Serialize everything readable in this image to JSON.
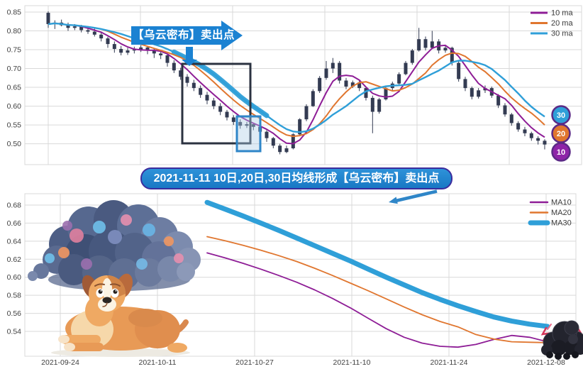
{
  "top_callout": {
    "label": "【乌云密布】卖出点"
  },
  "mid_banner": {
    "label": "2021-11-11 10日,20日,30日均线形成【乌云密布】卖出点"
  },
  "colors": {
    "ma10": "#8e1d96",
    "ma20": "#e0762f",
    "ma30": "#2f9fd8",
    "candle": "#333b52",
    "grid": "#d9d9d9",
    "axis_text": "#3f3f3f",
    "banner_fill": "#1b82d2",
    "box_dark": "#2b3240",
    "box_blue": "#2f86c8",
    "badge_border": "#5b2a86",
    "badge10": "#8e24a8",
    "badge20": "#e0762f",
    "badge30": "#2f9fd8"
  },
  "badges": [
    {
      "label": "30",
      "color_key": "badge30"
    },
    {
      "label": "20",
      "color_key": "badge20"
    },
    {
      "label": "10",
      "color_key": "badge10"
    }
  ],
  "chart_data": [
    {
      "type": "candlestick",
      "title": "",
      "legend": [
        "10 ma",
        "20 ma",
        "30 ma"
      ],
      "ylim": [
        0.47,
        0.87
      ],
      "yticks": [
        0.85,
        0.8,
        0.75,
        0.7,
        0.65,
        0.6,
        0.55,
        0.5
      ],
      "ma_render_windows": [
        5,
        9,
        12
      ],
      "highlight_ma30_segment": [
        19,
        33
      ],
      "candles": [
        [
          0.848,
          0.852,
          0.808,
          0.818
        ],
        [
          0.818,
          0.828,
          0.805,
          0.822
        ],
        [
          0.822,
          0.83,
          0.812,
          0.815
        ],
        [
          0.815,
          0.822,
          0.8,
          0.808
        ],
        [
          0.808,
          0.818,
          0.802,
          0.812
        ],
        [
          0.812,
          0.816,
          0.796,
          0.802
        ],
        [
          0.802,
          0.81,
          0.792,
          0.798
        ],
        [
          0.798,
          0.806,
          0.785,
          0.79
        ],
        [
          0.79,
          0.796,
          0.772,
          0.78
        ],
        [
          0.78,
          0.784,
          0.755,
          0.765
        ],
        [
          0.765,
          0.772,
          0.742,
          0.752
        ],
        [
          0.752,
          0.76,
          0.735,
          0.742
        ],
        [
          0.742,
          0.755,
          0.736,
          0.748
        ],
        [
          0.748,
          0.758,
          0.74,
          0.75
        ],
        [
          0.75,
          0.762,
          0.744,
          0.756
        ],
        [
          0.756,
          0.76,
          0.738,
          0.748
        ],
        [
          0.748,
          0.752,
          0.728,
          0.74
        ],
        [
          0.74,
          0.748,
          0.725,
          0.735
        ],
        [
          0.735,
          0.74,
          0.705,
          0.715
        ],
        [
          0.715,
          0.722,
          0.688,
          0.695
        ],
        [
          0.695,
          0.702,
          0.67,
          0.678
        ],
        [
          0.678,
          0.685,
          0.652,
          0.662
        ],
        [
          0.662,
          0.67,
          0.64,
          0.648
        ],
        [
          0.648,
          0.655,
          0.622,
          0.63
        ],
        [
          0.63,
          0.638,
          0.605,
          0.615
        ],
        [
          0.615,
          0.622,
          0.592,
          0.6
        ],
        [
          0.6,
          0.608,
          0.576,
          0.585
        ],
        [
          0.585,
          0.59,
          0.562,
          0.57
        ],
        [
          0.57,
          0.576,
          0.55,
          0.558
        ],
        [
          0.558,
          0.565,
          0.54,
          0.548
        ],
        [
          0.548,
          0.558,
          0.542,
          0.552
        ],
        [
          0.552,
          0.556,
          0.536,
          0.545
        ],
        [
          0.545,
          0.55,
          0.522,
          0.532
        ],
        [
          0.532,
          0.536,
          0.505,
          0.515
        ],
        [
          0.515,
          0.518,
          0.488,
          0.495
        ],
        [
          0.495,
          0.5,
          0.472,
          0.478
        ],
        [
          0.478,
          0.495,
          0.475,
          0.488
        ],
        [
          0.488,
          0.528,
          0.485,
          0.525
        ],
        [
          0.525,
          0.568,
          0.522,
          0.565
        ],
        [
          0.565,
          0.605,
          0.56,
          0.6
        ],
        [
          0.6,
          0.645,
          0.598,
          0.64
        ],
        [
          0.64,
          0.68,
          0.635,
          0.675
        ],
        [
          0.675,
          0.72,
          0.67,
          0.7
        ],
        [
          0.7,
          0.728,
          0.688,
          0.715
        ],
        [
          0.715,
          0.72,
          0.66,
          0.668
        ],
        [
          0.668,
          0.675,
          0.645,
          0.652
        ],
        [
          0.652,
          0.668,
          0.648,
          0.663
        ],
        [
          0.663,
          0.67,
          0.64,
          0.648
        ],
        [
          0.648,
          0.652,
          0.615,
          0.622
        ],
        [
          0.622,
          0.628,
          0.528,
          0.585
        ],
        [
          0.585,
          0.622,
          0.58,
          0.618
        ],
        [
          0.618,
          0.652,
          0.615,
          0.648
        ],
        [
          0.648,
          0.665,
          0.642,
          0.66
        ],
        [
          0.66,
          0.69,
          0.655,
          0.685
        ],
        [
          0.685,
          0.72,
          0.682,
          0.715
        ],
        [
          0.715,
          0.752,
          0.71,
          0.748
        ],
        [
          0.748,
          0.808,
          0.745,
          0.778
        ],
        [
          0.778,
          0.785,
          0.748,
          0.755
        ],
        [
          0.755,
          0.8,
          0.752,
          0.772
        ],
        [
          0.772,
          0.778,
          0.74,
          0.748
        ],
        [
          0.748,
          0.762,
          0.742,
          0.755
        ],
        [
          0.755,
          0.758,
          0.708,
          0.715
        ],
        [
          0.715,
          0.72,
          0.665,
          0.672
        ],
        [
          0.672,
          0.678,
          0.64,
          0.648
        ],
        [
          0.648,
          0.652,
          0.618,
          0.625
        ],
        [
          0.625,
          0.648,
          0.62,
          0.642
        ],
        [
          0.642,
          0.655,
          0.635,
          0.648
        ],
        [
          0.648,
          0.652,
          0.622,
          0.628
        ],
        [
          0.628,
          0.632,
          0.595,
          0.602
        ],
        [
          0.602,
          0.608,
          0.572,
          0.578
        ],
        [
          0.578,
          0.582,
          0.548,
          0.555
        ],
        [
          0.555,
          0.56,
          0.532,
          0.538
        ],
        [
          0.538,
          0.545,
          0.52,
          0.528
        ],
        [
          0.528,
          0.532,
          0.508,
          0.515
        ],
        [
          0.515,
          0.52,
          0.498,
          0.508
        ],
        [
          0.508,
          0.512,
          0.485,
          0.498
        ]
      ]
    },
    {
      "type": "line",
      "title": "",
      "legend": [
        "MA10",
        "MA20",
        "MA30"
      ],
      "ylim": [
        0.515,
        0.69
      ],
      "yticks": [
        0.68,
        0.66,
        0.64,
        0.62,
        0.6,
        0.58,
        0.56,
        0.54
      ],
      "xtick_labels": [
        "2021-09-24",
        "2021-10-11",
        "2021-10-27",
        "2021-11-10",
        "2021-11-24",
        "2021-12-08"
      ],
      "series": [
        {
          "name": "MA10",
          "values": [
            0.627,
            0.6215,
            0.6155,
            0.609,
            0.602,
            0.5945,
            0.586,
            0.5765,
            0.566,
            0.5545,
            0.543,
            0.5335,
            0.527,
            0.5235,
            0.5225,
            0.5255,
            0.531,
            0.5355,
            0.5335,
            0.5285
          ]
        },
        {
          "name": "MA20",
          "values": [
            0.645,
            0.6405,
            0.6355,
            0.63,
            0.624,
            0.6175,
            0.61,
            0.602,
            0.5935,
            0.585,
            0.576,
            0.567,
            0.5585,
            0.551,
            0.545,
            0.5365,
            0.5315,
            0.5285,
            0.528,
            0.5275
          ]
        },
        {
          "name": "MA30",
          "values": [
            0.683,
            0.6755,
            0.668,
            0.66,
            0.652,
            0.6435,
            0.635,
            0.6265,
            0.618,
            0.609,
            0.6,
            0.5915,
            0.583,
            0.5755,
            0.5685,
            0.562,
            0.556,
            0.5515,
            0.548,
            0.5455
          ]
        }
      ]
    }
  ],
  "illustrations": {
    "storm_cloud": "colorful-painted-storm-cloud",
    "sad_dog": "worried-cartoon-dog",
    "black_cloud": "black-storm-cloud-with-lightning"
  }
}
